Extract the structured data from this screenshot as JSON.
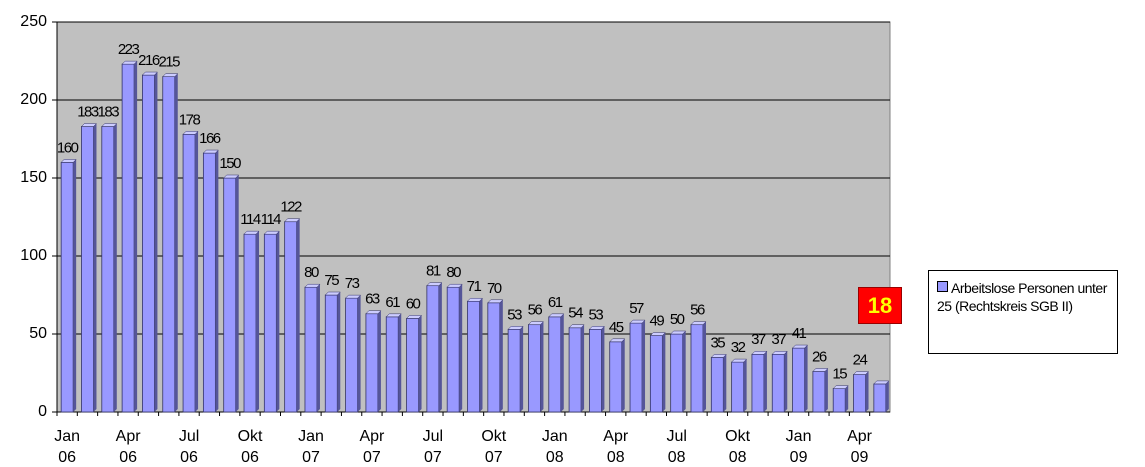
{
  "chart_data": {
    "type": "bar",
    "categories": [
      [
        "Jan",
        "06"
      ],
      null,
      null,
      [
        "Apr",
        "06"
      ],
      null,
      null,
      [
        "Jul",
        "06"
      ],
      null,
      null,
      [
        "Okt",
        "06"
      ],
      null,
      null,
      [
        "Jan",
        "07"
      ],
      null,
      null,
      [
        "Apr",
        "07"
      ],
      null,
      null,
      [
        "Jul",
        "07"
      ],
      null,
      null,
      [
        "Okt",
        "07"
      ],
      null,
      null,
      [
        "Jan",
        "08"
      ],
      null,
      null,
      [
        "Apr",
        "08"
      ],
      null,
      null,
      [
        "Jul",
        "08"
      ],
      null,
      null,
      [
        "Okt",
        "08"
      ],
      null,
      null,
      [
        "Jan",
        "09"
      ],
      null,
      null,
      [
        "Apr",
        "09"
      ],
      null
    ],
    "series": [
      {
        "name": "Arbeitslose Personen unter 25 (Rechtskreis SGB II)",
        "color": "#9999ff",
        "values": [
          160,
          183,
          183,
          223,
          216,
          215,
          178,
          166,
          150,
          114,
          114,
          122,
          80,
          75,
          73,
          63,
          61,
          60,
          81,
          80,
          71,
          70,
          53,
          56,
          61,
          54,
          53,
          45,
          57,
          49,
          50,
          56,
          35,
          32,
          37,
          37,
          41,
          26,
          15,
          24,
          18
        ]
      }
    ],
    "ylim": [
      0,
      250
    ],
    "yticks": [
      0,
      50,
      100,
      150,
      200,
      250
    ],
    "grid": true
  }
}
